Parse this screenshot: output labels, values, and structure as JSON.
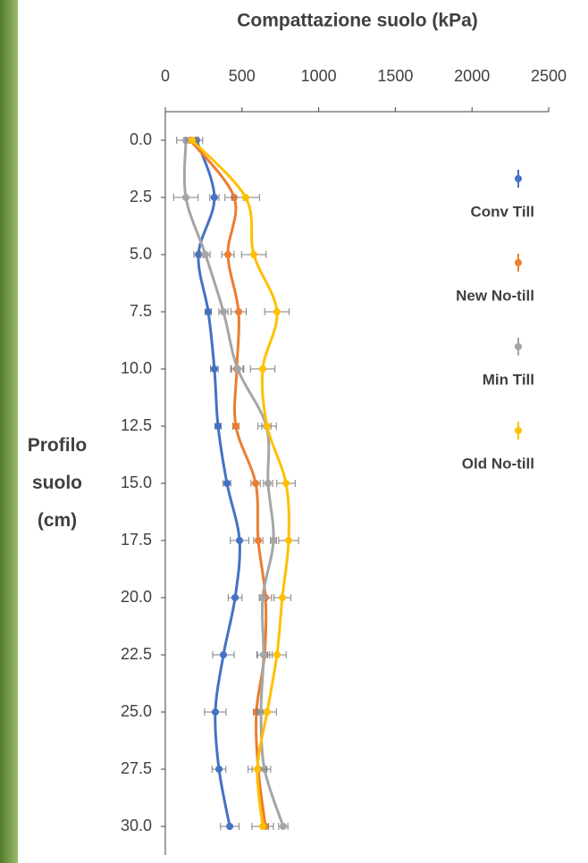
{
  "chart_data": {
    "type": "line",
    "title": "Compattazione suolo (kPa)",
    "y_label": "Profilo suolo (cm)",
    "y": [
      {
        "value": 0,
        "label": "0.0"
      },
      2.5,
      {
        "value": 5,
        "label": "5.0"
      },
      7.5,
      {
        "value": 10,
        "label": "10.0"
      },
      12.5,
      {
        "value": 15,
        "label": "15.0"
      },
      17.5,
      {
        "value": 20,
        "label": "20.0"
      },
      22.5,
      {
        "value": 25,
        "label": "25.0"
      },
      27.5,
      {
        "value": 30,
        "label": "30.0"
      }
    ],
    "xlim": [
      0,
      2500
    ],
    "xticks": [
      0,
      500,
      1000,
      1500,
      2000,
      2500
    ],
    "ylim": [
      -1.25,
      31.25
    ],
    "series": [
      {
        "name": "Conv Till",
        "color": "#4472c4",
        "values": [
          204,
          320,
          216,
          280,
          320,
          344,
          402,
          484,
          455,
          379,
          326,
          350,
          420
        ],
        "errors": [
          40,
          30,
          30,
          20,
          25,
          20,
          25,
          60,
          45,
          70,
          70,
          45,
          60
        ]
      },
      {
        "name": "New No-till",
        "color": "#ed7d31",
        "values": [
          163,
          449,
          408,
          478,
          466,
          460,
          589,
          606,
          653,
          647,
          594,
          606,
          653
        ],
        "errors": [
          40,
          60,
          40,
          50,
          40,
          20,
          30,
          30,
          40,
          50,
          20,
          40,
          20
        ]
      },
      {
        "name": "Min Till",
        "color": "#a5a5a5",
        "values": [
          134,
          134,
          262,
          379,
          472,
          659,
          670,
          705,
          635,
          641,
          624,
          647,
          769
        ],
        "errors": [
          60,
          80,
          30,
          30,
          40,
          30,
          30,
          20,
          20,
          40,
          30,
          40,
          30
        ]
      },
      {
        "name": "Old No-till",
        "color": "#ffc000",
        "values": [
          175,
          524,
          577,
          728,
          635,
          664,
          787,
          804,
          763,
          728,
          664,
          600,
          635
        ],
        "errors": [
          40,
          90,
          80,
          80,
          80,
          60,
          60,
          65,
          55,
          60,
          60,
          60,
          70
        ]
      }
    ]
  }
}
